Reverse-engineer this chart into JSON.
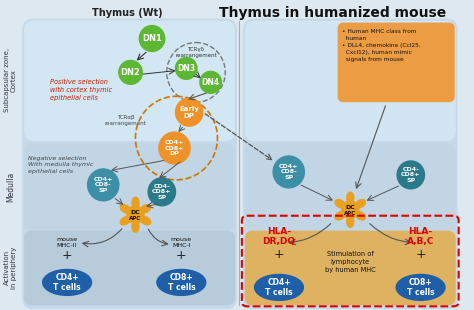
{
  "title": "Thymus in humanized mouse",
  "subtitle": "Thymus (Wt)",
  "positive_selection_text": "Positive selection\nwith cortex thymic\nepithelial cells",
  "negative_selection_text": "Negative selection\nWith medulla thymic\nepithelial cells",
  "stimulation_text": "Stimulation of\nlymphocyte\nby human MHC",
  "info_box_text": "• Human MHC class from\n  human\n• DLL4, chemokine (Ccl25,\n  Cxcl12), human mimic\n  signals from mouse",
  "tcr_gd": "TCRγδ\nrearrangement",
  "tcr_ab": "TCRαβ\nrearrangement",
  "green": "#5cb832",
  "orange_cell": "#f0922a",
  "teal": "#3d8fa8",
  "blue_cell": "#1e5fa8",
  "dc_yellow": "#e8a020",
  "red_hla": "#dd0000",
  "zone_bg_light": "#ccdded",
  "zone_bg_mid": "#b8cfe0",
  "zone_bg_dark": "#a8c2d8",
  "orange_box": "#f0922a",
  "orange_stim": "#f0922a",
  "fig_bg": "#dde8f0"
}
